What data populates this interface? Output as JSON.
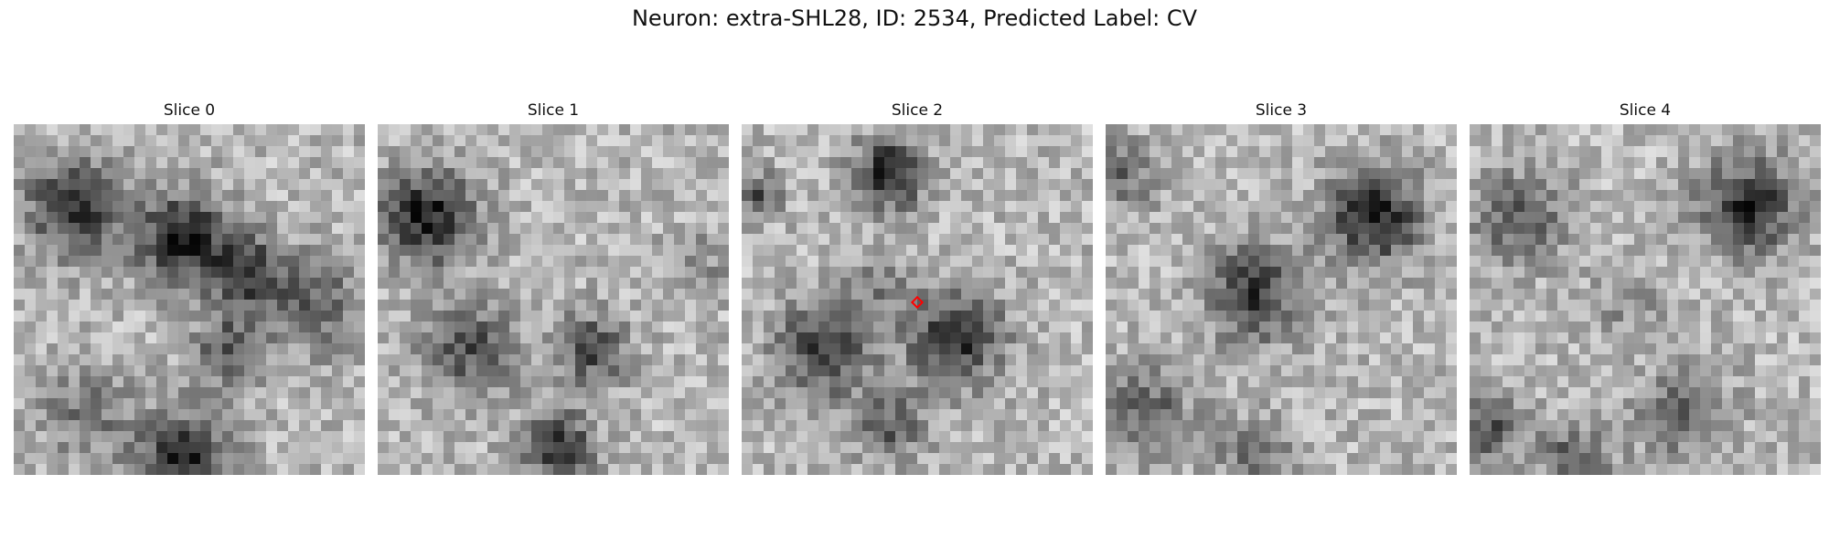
{
  "figure": {
    "title": "Neuron: extra-SHL28, ID: 2534, Predicted Label: CV"
  },
  "slices": [
    {
      "label": "Slice 0"
    },
    {
      "label": "Slice 1"
    },
    {
      "label": "Slice 2"
    },
    {
      "label": "Slice 3"
    },
    {
      "label": "Slice 4"
    }
  ],
  "marker": {
    "color": "#ff0000",
    "shape": "diamond",
    "slice_index": 2
  },
  "colormap": "grayscale"
}
